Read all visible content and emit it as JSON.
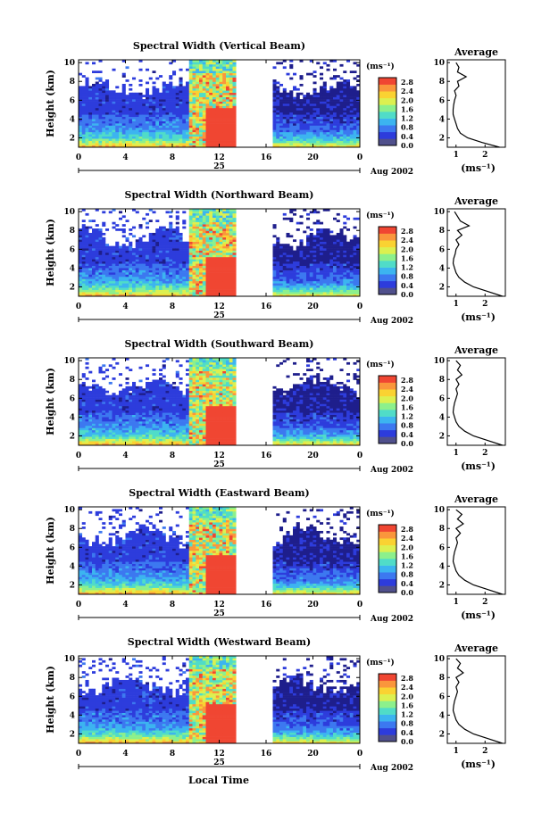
{
  "chart_data": {
    "type": "heatmap",
    "panel_titles": [
      "Spectral Width (Vertical Beam)",
      "Spectral Width (Northward Beam)",
      "Spectral Width (Southward Beam)",
      "Spectral Width (Eastward Beam)",
      "Spectral Width (Westward Beam)"
    ],
    "ylabel": "Height (km)",
    "xlabel": "Local Time",
    "x_ticks": [
      "0",
      "4",
      "8",
      "12",
      "16",
      "20",
      "0"
    ],
    "y_ticks": [
      "2",
      "4",
      "6",
      "8",
      "10"
    ],
    "xlim": [
      0,
      24
    ],
    "ylim": [
      1,
      10.3
    ],
    "date_day": "25",
    "date_month_year": "Aug 2002",
    "data_gap_hours": [
      13.5,
      16.5
    ],
    "colorbar": {
      "unit_label": "(ms⁻¹)",
      "ticks": [
        "0.0",
        "0.4",
        "0.8",
        "1.2",
        "1.6",
        "2.0",
        "2.4",
        "2.8"
      ],
      "range": [
        0,
        3.0
      ]
    },
    "average_profile": {
      "title": "Average",
      "xlabel": "(ms⁻¹)",
      "x_ticks": [
        "1",
        "2"
      ],
      "y_ticks": [
        "2",
        "4",
        "6",
        "8",
        "10"
      ],
      "xlim": [
        0.7,
        2.7
      ],
      "heights_km": [
        1,
        1.5,
        2,
        2.5,
        3,
        3.5,
        4,
        4.5,
        5,
        5.5,
        6,
        6.5,
        7,
        7.5,
        8,
        8.5,
        9,
        9.5,
        10
      ],
      "series": [
        {
          "values": [
            2.5,
            1.9,
            1.4,
            1.15,
            1.05,
            1.0,
            0.95,
            0.9,
            0.9,
            0.92,
            0.95,
            1.0,
            0.95,
            1.1,
            1.05,
            1.35,
            1.05,
            1.1,
            1.0
          ]
        },
        {
          "values": [
            2.6,
            2.1,
            1.6,
            1.3,
            1.1,
            1.0,
            0.95,
            0.9,
            0.92,
            0.97,
            1.0,
            1.1,
            1.0,
            1.2,
            1.05,
            1.45,
            1.15,
            1.05,
            0.95
          ]
        },
        {
          "values": [
            2.6,
            2.1,
            1.6,
            1.3,
            1.1,
            1.0,
            0.95,
            0.9,
            0.92,
            0.95,
            1.0,
            1.05,
            1.0,
            1.1,
            1.0,
            1.2,
            1.05,
            1.15,
            1.0
          ]
        },
        {
          "values": [
            2.6,
            2.1,
            1.6,
            1.3,
            1.1,
            1.0,
            0.95,
            0.9,
            0.92,
            0.95,
            1.0,
            1.05,
            1.0,
            1.15,
            1.0,
            1.25,
            1.05,
            1.2,
            1.0
          ]
        },
        {
          "values": [
            2.6,
            2.1,
            1.6,
            1.3,
            1.1,
            1.0,
            0.95,
            0.9,
            0.92,
            0.95,
            1.0,
            1.05,
            1.0,
            1.1,
            1.0,
            1.25,
            1.05,
            1.15,
            1.0
          ]
        }
      ]
    }
  },
  "colors": {
    "colormap": [
      "#1e1e8c",
      "#2d3cdc",
      "#3c78f0",
      "#3cb4f0",
      "#50dcc8",
      "#8cf08c",
      "#dcf050",
      "#fad232",
      "#fa963c",
      "#f04632"
    ],
    "missing": "#ffffff",
    "lowest_bin": "#50508c"
  }
}
